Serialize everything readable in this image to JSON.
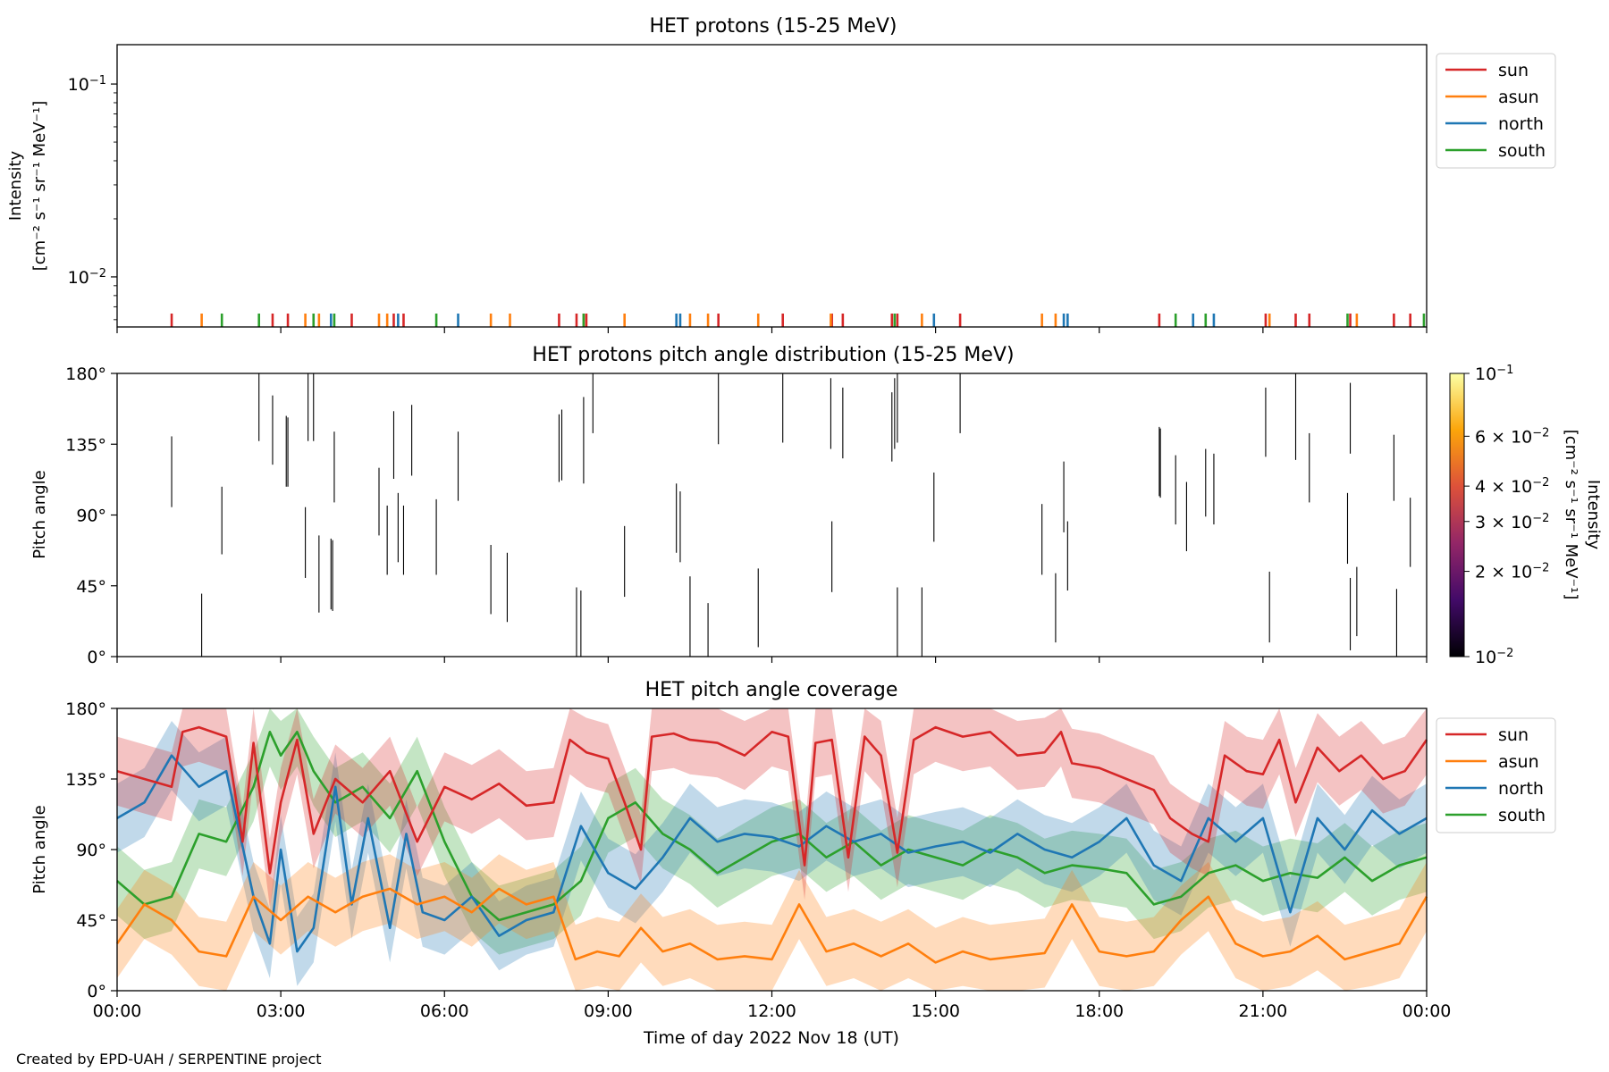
{
  "footer": "Created by EPD-UAH / SERPENTINE project",
  "x_axis": {
    "label": "Time of day 2022 Nov 18 (UT)",
    "ticks": [
      "00:00",
      "03:00",
      "06:00",
      "09:00",
      "12:00",
      "15:00",
      "18:00",
      "21:00",
      "00:00"
    ],
    "range_hours": [
      0,
      24
    ]
  },
  "colors": {
    "sun": "#d62728",
    "asun": "#ff7f0e",
    "north": "#1f77b4",
    "south": "#2ca02c"
  },
  "chart_data": [
    {
      "type": "line",
      "title": "HET protons (15-25 MeV)",
      "ylabel_line1": "Intensity",
      "ylabel_line2": "[cm⁻² s⁻¹ sr⁻¹ MeV⁻¹]",
      "yscale": "log",
      "ylim": [
        0.0055,
        0.16
      ],
      "yticks": [
        {
          "value": 0.1,
          "base": "10",
          "exp": "−1"
        },
        {
          "value": 0.01,
          "base": "10",
          "exp": "−2"
        }
      ],
      "legend": {
        "placement": "outside-right-top",
        "entries": [
          "sun",
          "asun",
          "north",
          "south"
        ]
      },
      "series": [
        {
          "name": "sun",
          "x_hours": [
            1.0,
            2.85,
            3.13,
            4.3,
            5.07,
            5.25,
            8.1,
            8.42,
            8.6,
            11.02,
            12.2,
            13.1,
            13.3,
            14.2,
            14.3,
            15.45,
            19.1,
            21.05,
            21.6,
            21.85,
            22.6,
            23.4,
            23.7
          ],
          "values": [
            0.0055,
            0.0055,
            0.0055,
            0.0055,
            0.0055,
            0.0055,
            0.0055,
            0.0055,
            0.0055,
            0.0055,
            0.0055,
            0.0055,
            0.0055,
            0.0055,
            0.0055,
            0.0055,
            0.0055,
            0.0055,
            0.0055,
            0.0055,
            0.0055,
            0.0055,
            0.0055
          ]
        },
        {
          "name": "asun",
          "x_hours": [
            1.55,
            3.45,
            3.7,
            4.8,
            4.95,
            6.85,
            7.2,
            8.55,
            9.3,
            10.5,
            10.83,
            11.75,
            13.08,
            14.75,
            16.95,
            17.2,
            21.12,
            22.72
          ],
          "values": [
            0.0055,
            0.0055,
            0.0055,
            0.0055,
            0.0055,
            0.0055,
            0.0055,
            0.0055,
            0.0055,
            0.0055,
            0.0055,
            0.0055,
            0.0055,
            0.0055,
            0.0055,
            0.0055,
            0.0055,
            0.0055
          ]
        },
        {
          "name": "north",
          "x_hours": [
            3.92,
            5.15,
            6.25,
            10.25,
            10.32,
            14.97,
            17.35,
            17.42,
            19.72,
            20.1
          ],
          "values": [
            0.0055,
            0.0055,
            0.0055,
            0.0055,
            0.0055,
            0.0055,
            0.0055,
            0.0055,
            0.0055,
            0.0055
          ]
        },
        {
          "name": "south",
          "x_hours": [
            1.92,
            2.6,
            3.6,
            3.98,
            5.85,
            8.55,
            14.25,
            19.4,
            19.95,
            22.55,
            23.95
          ],
          "values": [
            0.0055,
            0.0055,
            0.0055,
            0.0055,
            0.0055,
            0.0055,
            0.0055,
            0.0055,
            0.0055,
            0.0055,
            0.0055
          ]
        }
      ]
    },
    {
      "type": "heatmap",
      "title": "HET protons pitch angle distribution (15-25 MeV)",
      "ylabel": "Pitch angle",
      "ylim": [
        0,
        180
      ],
      "yticks": [
        "0°",
        "45°",
        "90°",
        "135°",
        "180°"
      ],
      "colorbar": {
        "label_line1": "Intensity",
        "label_line2": "[cm⁻² s⁻¹ sr⁻¹ MeV⁻¹]",
        "scale": "log",
        "range": [
          0.01,
          0.1
        ],
        "ticks": [
          {
            "value": 0.1,
            "mant": "",
            "base": "10",
            "exp": "−1"
          },
          {
            "value": 0.06,
            "mant": "6 × ",
            "base": "10",
            "exp": "−2"
          },
          {
            "value": 0.04,
            "mant": "4 × ",
            "base": "10",
            "exp": "−2"
          },
          {
            "value": 0.03,
            "mant": "3 × ",
            "base": "10",
            "exp": "−2"
          },
          {
            "value": 0.02,
            "mant": "2 × ",
            "base": "10",
            "exp": "−2"
          },
          {
            "value": 0.01,
            "mant": "",
            "base": "10",
            "exp": "−2"
          }
        ],
        "colormap": "inferno"
      },
      "segments": [
        [
          1.0,
          95,
          140
        ],
        [
          1.55,
          0,
          40
        ],
        [
          1.92,
          65,
          108
        ],
        [
          2.6,
          137,
          180
        ],
        [
          2.85,
          122,
          166
        ],
        [
          3.1,
          108,
          153
        ],
        [
          3.13,
          108,
          152
        ],
        [
          3.45,
          50,
          95
        ],
        [
          3.5,
          137,
          180
        ],
        [
          3.6,
          137,
          180
        ],
        [
          3.7,
          28,
          77
        ],
        [
          3.92,
          30,
          75
        ],
        [
          3.95,
          29,
          74
        ],
        [
          3.98,
          98,
          143
        ],
        [
          4.8,
          77,
          120
        ],
        [
          4.95,
          52,
          96
        ],
        [
          5.07,
          113,
          156
        ],
        [
          5.15,
          60,
          104
        ],
        [
          5.25,
          52,
          96
        ],
        [
          5.4,
          115,
          160
        ],
        [
          5.85,
          52,
          100
        ],
        [
          6.25,
          99,
          143
        ],
        [
          6.85,
          27,
          71
        ],
        [
          7.15,
          22,
          66
        ],
        [
          8.1,
          111,
          154
        ],
        [
          8.15,
          112,
          157
        ],
        [
          8.42,
          0,
          44
        ],
        [
          8.5,
          0,
          42
        ],
        [
          8.55,
          110,
          165
        ],
        [
          8.72,
          142,
          180
        ],
        [
          9.3,
          38,
          83
        ],
        [
          10.25,
          66,
          110
        ],
        [
          10.32,
          60,
          105
        ],
        [
          10.5,
          0,
          51
        ],
        [
          10.83,
          0,
          34
        ],
        [
          11.02,
          135,
          180
        ],
        [
          11.75,
          6,
          56
        ],
        [
          12.2,
          136,
          180
        ],
        [
          13.08,
          132,
          177
        ],
        [
          13.1,
          41,
          86
        ],
        [
          13.3,
          126,
          171
        ],
        [
          14.2,
          124,
          168
        ],
        [
          14.25,
          132,
          177
        ],
        [
          14.3,
          0,
          44
        ],
        [
          14.3,
          136,
          180
        ],
        [
          14.75,
          0,
          44
        ],
        [
          14.97,
          73,
          117
        ],
        [
          15.45,
          142,
          180
        ],
        [
          16.95,
          52,
          97
        ],
        [
          17.2,
          9,
          53
        ],
        [
          17.35,
          79,
          124
        ],
        [
          17.42,
          42,
          86
        ],
        [
          19.1,
          102,
          146
        ],
        [
          19.12,
          101,
          145
        ],
        [
          19.4,
          84,
          128
        ],
        [
          19.6,
          67,
          111
        ],
        [
          19.95,
          89,
          132
        ],
        [
          20.1,
          84,
          129
        ],
        [
          21.05,
          127,
          171
        ],
        [
          21.12,
          9,
          54
        ],
        [
          21.6,
          125,
          180
        ],
        [
          21.85,
          98,
          142
        ],
        [
          22.55,
          59,
          104
        ],
        [
          22.6,
          4,
          50
        ],
        [
          22.6,
          129,
          174
        ],
        [
          22.72,
          13,
          57
        ],
        [
          23.4,
          99,
          141
        ],
        [
          23.45,
          0,
          43
        ],
        [
          23.7,
          57,
          101
        ]
      ]
    },
    {
      "type": "area",
      "title": "HET pitch angle coverage",
      "ylabel": "Pitch angle",
      "ylim": [
        0,
        180
      ],
      "yticks": [
        "0°",
        "45°",
        "90°",
        "135°",
        "180°"
      ],
      "legend": {
        "placement": "outside-right-top",
        "entries": [
          "sun",
          "asun",
          "north",
          "south"
        ]
      },
      "band_halfwidth_deg": 22,
      "series": [
        {
          "name": "sun",
          "x_hours": [
            0,
            0.5,
            1.0,
            1.2,
            1.5,
            2.0,
            2.3,
            2.5,
            2.8,
            3.0,
            3.3,
            3.6,
            4.0,
            4.5,
            5.0,
            5.5,
            6.0,
            6.5,
            7.0,
            7.5,
            8.0,
            8.3,
            8.6,
            9.0,
            9.3,
            9.6,
            9.8,
            10.2,
            10.5,
            11.0,
            11.5,
            12.0,
            12.3,
            12.6,
            12.8,
            13.1,
            13.4,
            13.7,
            14.0,
            14.3,
            14.6,
            15.0,
            15.5,
            16.0,
            16.5,
            17.0,
            17.3,
            17.5,
            18.0,
            18.5,
            19.0,
            19.3,
            19.7,
            20.0,
            20.3,
            20.7,
            21.0,
            21.3,
            21.6,
            22.0,
            22.4,
            22.8,
            23.2,
            23.6,
            24.0
          ],
          "values": [
            140,
            135,
            130,
            165,
            168,
            162,
            95,
            158,
            75,
            120,
            160,
            100,
            135,
            120,
            140,
            95,
            130,
            122,
            132,
            118,
            120,
            160,
            152,
            148,
            120,
            90,
            162,
            164,
            160,
            158,
            150,
            165,
            162,
            80,
            158,
            160,
            85,
            162,
            150,
            88,
            160,
            168,
            162,
            165,
            150,
            152,
            165,
            145,
            142,
            135,
            128,
            110,
            100,
            95,
            150,
            140,
            138,
            160,
            120,
            155,
            140,
            150,
            135,
            140,
            160
          ]
        },
        {
          "name": "asun",
          "x_hours": [
            0,
            0.5,
            1.0,
            1.5,
            2.0,
            2.5,
            3.0,
            3.5,
            4.0,
            4.5,
            5.0,
            5.5,
            6.0,
            6.5,
            7.0,
            7.5,
            8.0,
            8.4,
            8.8,
            9.2,
            9.6,
            10.0,
            10.5,
            11.0,
            11.5,
            12.0,
            12.5,
            13.0,
            13.5,
            14.0,
            14.5,
            15.0,
            15.5,
            16.0,
            16.5,
            17.0,
            17.5,
            18.0,
            18.5,
            19.0,
            19.5,
            20.0,
            20.5,
            21.0,
            21.5,
            22.0,
            22.5,
            23.0,
            23.5,
            24.0
          ],
          "values": [
            30,
            55,
            45,
            25,
            22,
            60,
            45,
            60,
            50,
            60,
            65,
            55,
            60,
            50,
            65,
            55,
            60,
            20,
            25,
            22,
            40,
            25,
            30,
            20,
            22,
            20,
            55,
            25,
            30,
            22,
            30,
            18,
            25,
            20,
            22,
            24,
            55,
            25,
            22,
            25,
            45,
            60,
            30,
            22,
            25,
            35,
            20,
            25,
            30,
            60
          ]
        },
        {
          "name": "north",
          "x_hours": [
            0,
            0.5,
            1.0,
            1.5,
            2.0,
            2.5,
            2.8,
            3.0,
            3.3,
            3.6,
            4.0,
            4.3,
            4.6,
            5.0,
            5.3,
            5.6,
            6.0,
            6.5,
            7.0,
            7.5,
            8.0,
            8.5,
            9.0,
            9.5,
            10.0,
            10.5,
            11.0,
            11.5,
            12.0,
            12.5,
            13.0,
            13.5,
            14.0,
            14.5,
            15.0,
            15.5,
            16.0,
            16.5,
            17.0,
            17.5,
            18.0,
            18.5,
            19.0,
            19.5,
            20.0,
            20.5,
            21.0,
            21.5,
            22.0,
            22.5,
            23.0,
            23.5,
            24.0
          ],
          "values": [
            110,
            120,
            150,
            130,
            140,
            60,
            30,
            90,
            25,
            40,
            130,
            55,
            110,
            40,
            100,
            50,
            45,
            60,
            35,
            45,
            50,
            105,
            75,
            65,
            85,
            110,
            95,
            100,
            98,
            92,
            105,
            95,
            100,
            88,
            92,
            95,
            88,
            100,
            90,
            85,
            95,
            110,
            80,
            70,
            110,
            95,
            110,
            50,
            110,
            90,
            115,
            100,
            110
          ]
        },
        {
          "name": "south",
          "x_hours": [
            0,
            0.5,
            1.0,
            1.5,
            2.0,
            2.5,
            2.8,
            3.0,
            3.3,
            3.6,
            4.0,
            4.5,
            5.0,
            5.5,
            6.0,
            6.5,
            7.0,
            7.5,
            8.0,
            8.5,
            9.0,
            9.5,
            10.0,
            10.5,
            11.0,
            11.5,
            12.0,
            12.5,
            13.0,
            13.5,
            14.0,
            14.5,
            15.0,
            15.5,
            16.0,
            16.5,
            17.0,
            17.5,
            18.0,
            18.5,
            19.0,
            19.5,
            20.0,
            20.5,
            21.0,
            21.5,
            22.0,
            22.5,
            23.0,
            23.5,
            24.0
          ],
          "values": [
            70,
            55,
            60,
            100,
            95,
            130,
            165,
            150,
            165,
            140,
            120,
            130,
            110,
            140,
            95,
            60,
            45,
            50,
            55,
            70,
            110,
            120,
            100,
            90,
            75,
            85,
            95,
            100,
            85,
            95,
            80,
            90,
            85,
            80,
            90,
            85,
            75,
            80,
            78,
            75,
            55,
            60,
            75,
            80,
            70,
            75,
            72,
            85,
            70,
            80,
            85
          ]
        }
      ]
    }
  ]
}
